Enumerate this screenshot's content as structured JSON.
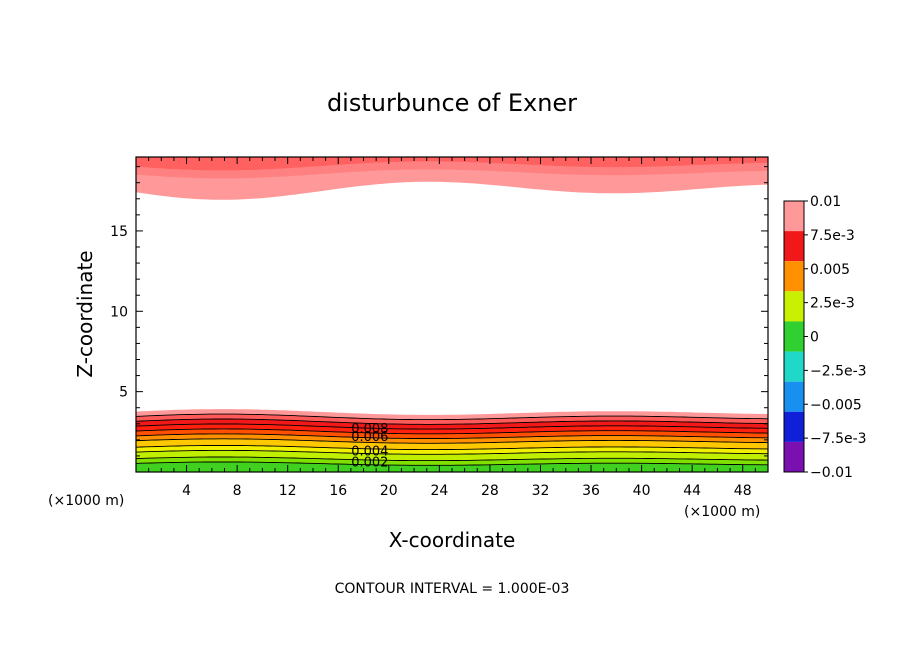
{
  "chart_data": {
    "type": "heatmap",
    "title": "disturbunce of Exner",
    "xlabel": "X-coordinate",
    "ylabel": "Z-coordinate",
    "x_unit_label": "(×1000 m)",
    "x_unit_label_right": "(×1000 m)",
    "xlim": [
      0,
      50
    ],
    "ylim": [
      0,
      19.6
    ],
    "x_ticks": [
      4,
      8,
      12,
      16,
      20,
      24,
      28,
      32,
      36,
      40,
      44,
      48
    ],
    "y_ticks": [
      5,
      10,
      15
    ],
    "grid": false,
    "footnote": "CONTOUR INTERVAL = 1.000E-03",
    "contour_interval": 0.001,
    "colorbar": {
      "placement": "right",
      "range": [
        -0.01,
        0.01
      ],
      "tick_labels": [
        "0.01",
        "7.5e-3",
        "0.005",
        "2.5e-3",
        "0",
        "-2.5e-3",
        "-0.005",
        "-7.5e-3",
        "-0.01"
      ],
      "levels": [
        {
          "from": -0.01,
          "to": -0.0075,
          "color": "#7a10b0"
        },
        {
          "from": -0.0075,
          "to": -0.005,
          "color": "#1020d8"
        },
        {
          "from": -0.005,
          "to": -0.0025,
          "color": "#1890f0"
        },
        {
          "from": -0.0025,
          "to": 0,
          "color": "#20d8c8"
        },
        {
          "from": 0,
          "to": 0.0025,
          "color": "#30d030"
        },
        {
          "from": 0.0025,
          "to": 0.005,
          "color": "#c8f000"
        },
        {
          "from": 0.005,
          "to": 0.0075,
          "color": "#ff9000"
        },
        {
          "from": 0.0075,
          "to": 0.01,
          "color": "#f01818"
        },
        {
          "from": 0.01,
          "to": 0.0125,
          "color": "#ff9898"
        }
      ]
    },
    "bottom_layer_bands": [
      {
        "value": 0.0005,
        "z_top": 0.5,
        "color": "#40d020"
      },
      {
        "value": 0.0015,
        "z_top": 0.8,
        "color": "#80e000"
      },
      {
        "value": 0.0025,
        "z_top": 1.2,
        "color": "#c0f000"
      },
      {
        "value": 0.0035,
        "z_top": 1.5,
        "color": "#f0f000"
      },
      {
        "value": 0.0045,
        "z_top": 1.9,
        "color": "#ffc800"
      },
      {
        "value": 0.0055,
        "z_top": 2.2,
        "color": "#ff9000"
      },
      {
        "value": 0.0065,
        "z_top": 2.5,
        "color": "#ff5000"
      },
      {
        "value": 0.0075,
        "z_top": 2.8,
        "color": "#ff2010"
      },
      {
        "value": 0.0085,
        "z_top": 3.1,
        "color": "#f01818"
      },
      {
        "value": 0.0095,
        "z_top": 3.4,
        "color": "#ff5a5a"
      },
      {
        "value": 0.0105,
        "z_top": 3.7,
        "color": "#ff9898"
      }
    ],
    "top_layer_bands": [
      {
        "value": 0.0105,
        "z_bottom": 17.6,
        "color": "#ff9898"
      },
      {
        "value": 0.0115,
        "z_bottom": 18.6,
        "color": "#ff8080"
      },
      {
        "value": 0.0125,
        "z_bottom": 19.1,
        "color": "#ff6060"
      }
    ],
    "contour_labels": [
      "0.008",
      "0.006",
      "0.004",
      "0.002"
    ],
    "contour_label_x": 18.5,
    "contour_label_z": [
      2.75,
      2.25,
      1.35,
      0.65
    ]
  }
}
